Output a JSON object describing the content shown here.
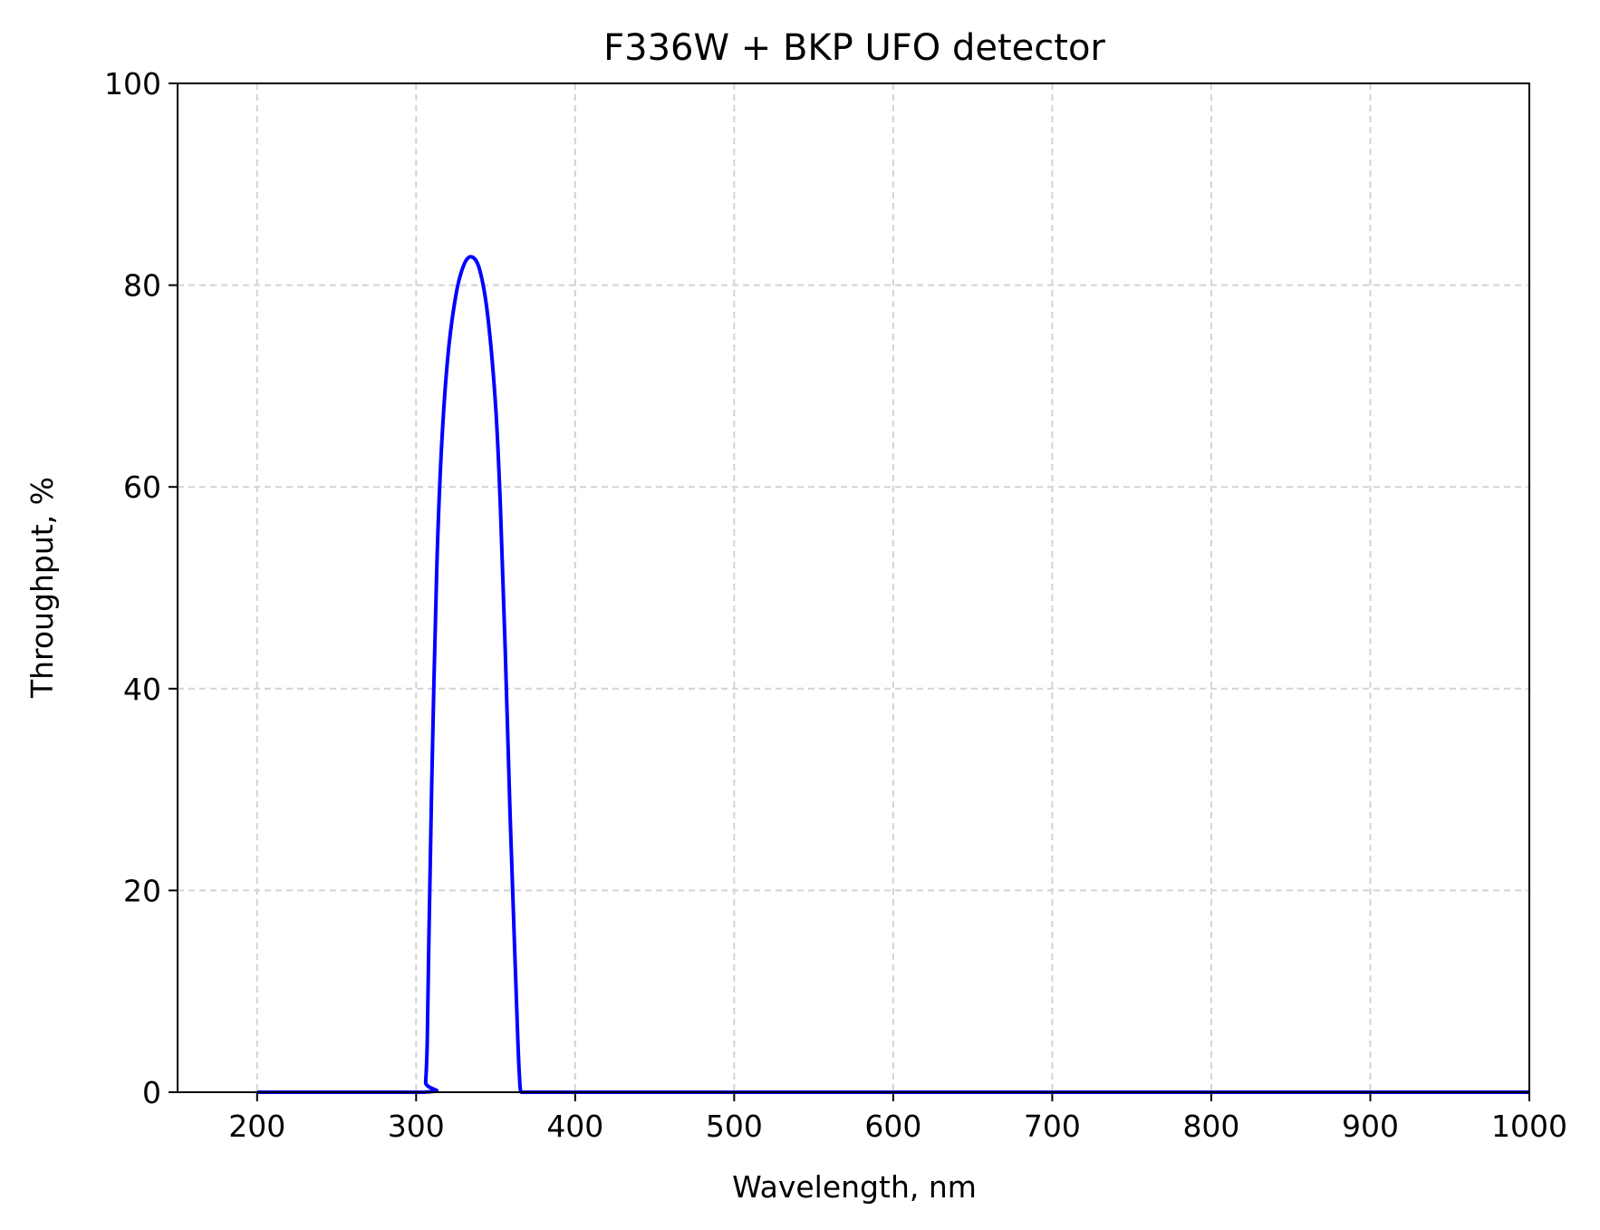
{
  "chart_data": {
    "type": "line",
    "title": "F336W + BKP UFO detector",
    "xlabel": "Wavelength, nm",
    "ylabel": "Throughput, %",
    "xlim": [
      150,
      1000
    ],
    "ylim": [
      0,
      100
    ],
    "xticks": [
      "200",
      "300",
      "400",
      "500",
      "600",
      "700",
      "800",
      "900",
      "1000"
    ],
    "yticks": [
      "0",
      "20",
      "40",
      "60",
      "80",
      "100"
    ],
    "grid": true,
    "legend": "none",
    "series": [
      {
        "color": "#0000ff",
        "x": [
          200,
          305,
          306,
          307,
          308,
          310,
          313,
          316,
          320,
          325,
          330,
          335,
          340,
          345,
          350,
          353,
          356,
          359,
          362,
          364,
          365,
          366,
          370,
          400,
          500,
          600,
          700,
          800,
          900,
          1000
        ],
        "y": [
          0,
          0,
          1,
          5,
          15,
          32,
          52,
          64,
          73,
          79,
          82,
          82.8,
          81.5,
          77,
          68,
          58,
          44,
          28,
          14,
          5,
          1.5,
          0,
          0,
          0,
          0,
          0,
          0,
          0,
          0,
          0
        ]
      }
    ]
  }
}
